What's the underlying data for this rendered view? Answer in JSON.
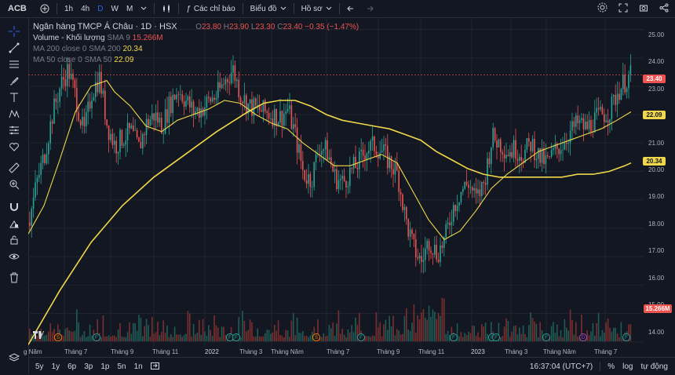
{
  "topbar": {
    "symbol": "ACB",
    "intervals": [
      "1h",
      "4h",
      "D",
      "W",
      "M"
    ],
    "active_interval": "D",
    "indicators_label": "Các chỉ báo",
    "chart_type_label": "Biểu đồ",
    "profile_label": "Hồ sơ"
  },
  "legend": {
    "title": "Ngân hàng TMCP Á Châu · 1D · HSX",
    "open_label": "O",
    "open": "23.80",
    "high_label": "H",
    "high": "23.90",
    "low_label": "L",
    "low": "23.30",
    "close_label": "C",
    "close": "23.40",
    "change": "−0.35 (−1.47%)",
    "volume_label": "Volume - Khối lượng",
    "volume_sma_label": "SMA 9",
    "volume_value": "15.266M",
    "ma200_label": "MA 200 close 0 SMA 200",
    "ma200_value": "20.34",
    "ma50_label": "MA 50 close 0 SMA 50",
    "ma50_value": "22.09"
  },
  "colors": {
    "up": "#26a69a",
    "down": "#ef5350",
    "ma": "#f0d84a",
    "background": "#131722",
    "grid": "#1f2430"
  },
  "price_axis": {
    "labels": [
      "25.00",
      "24.00",
      "23.00",
      "22.00",
      "21.00",
      "20.00",
      "19.00",
      "18.00",
      "17.00",
      "16.00",
      "15.00",
      "14.00"
    ],
    "last_price": "23.40",
    "ma50_tag": "22.09",
    "ma200_tag": "20.34",
    "volume_tag": "15.266M"
  },
  "time_axis": {
    "labels": [
      "g Năm",
      "Tháng 7",
      "Tháng 9",
      "Tháng 11",
      "2022",
      "Tháng 3",
      "Tháng Năm",
      "Tháng 7",
      "Tháng 9",
      "Tháng 11",
      "2023",
      "Tháng 3",
      "Tháng Năm",
      "Tháng 7"
    ]
  },
  "events": [
    "S",
    "F",
    "F",
    "F",
    "S",
    "F",
    "F",
    "F",
    "F",
    "F",
    "D",
    "F"
  ],
  "bottombar": {
    "ranges": [
      "5y",
      "1y",
      "6p",
      "3p",
      "1p",
      "5n",
      "1n"
    ],
    "time": "16:37:04 (UTC+7)",
    "percent_label": "%",
    "log_label": "log",
    "auto_label": "tự động"
  },
  "chart_data": {
    "type": "line",
    "ylim": [
      13.8,
      25.4
    ],
    "close_path": [
      [
        0,
        18.2
      ],
      [
        10,
        19.6
      ],
      [
        20,
        20.6
      ],
      [
        30,
        22.0
      ],
      [
        40,
        23.0
      ],
      [
        50,
        23.6
      ],
      [
        60,
        22.6
      ],
      [
        70,
        21.3
      ],
      [
        80,
        22.8
      ],
      [
        90,
        23.3
      ],
      [
        100,
        21.6
      ],
      [
        110,
        20.9
      ],
      [
        120,
        21.2
      ],
      [
        130,
        21.4
      ],
      [
        140,
        20.8
      ],
      [
        150,
        21.7
      ],
      [
        160,
        22.0
      ],
      [
        170,
        21.6
      ],
      [
        180,
        22.4
      ],
      [
        190,
        22.9
      ],
      [
        200,
        22.5
      ],
      [
        210,
        22.1
      ],
      [
        220,
        22.2
      ],
      [
        230,
        22.5
      ],
      [
        240,
        22.7
      ],
      [
        250,
        23.2
      ],
      [
        260,
        23.6
      ],
      [
        270,
        22.7
      ],
      [
        280,
        22.3
      ],
      [
        290,
        22.2
      ],
      [
        300,
        22.1
      ],
      [
        310,
        22.0
      ],
      [
        320,
        21.9
      ],
      [
        330,
        22.2
      ],
      [
        340,
        21.2
      ],
      [
        350,
        19.9
      ],
      [
        360,
        19.7
      ],
      [
        370,
        20.9
      ],
      [
        380,
        20.7
      ],
      [
        390,
        19.8
      ],
      [
        400,
        19.6
      ],
      [
        410,
        20.0
      ],
      [
        420,
        20.3
      ],
      [
        430,
        20.8
      ],
      [
        440,
        20.9
      ],
      [
        450,
        20.7
      ],
      [
        460,
        20.3
      ],
      [
        470,
        19.9
      ],
      [
        480,
        18.3
      ],
      [
        490,
        17.3
      ],
      [
        500,
        16.8
      ],
      [
        510,
        17.6
      ],
      [
        520,
        17.1
      ],
      [
        530,
        17.6
      ],
      [
        540,
        18.7
      ],
      [
        550,
        19.3
      ],
      [
        560,
        19.6
      ],
      [
        570,
        19.0
      ],
      [
        580,
        19.6
      ],
      [
        590,
        21.2
      ],
      [
        600,
        21.0
      ],
      [
        610,
        20.7
      ],
      [
        620,
        20.8
      ],
      [
        630,
        20.6
      ],
      [
        640,
        21.0
      ],
      [
        650,
        20.5
      ],
      [
        660,
        20.3
      ],
      [
        670,
        20.7
      ],
      [
        680,
        21.0
      ],
      [
        690,
        21.4
      ],
      [
        700,
        21.7
      ],
      [
        710,
        21.5
      ],
      [
        720,
        21.8
      ],
      [
        730,
        22.0
      ],
      [
        740,
        22.1
      ],
      [
        750,
        22.8
      ],
      [
        760,
        23.2
      ],
      [
        768,
        23.4
      ]
    ],
    "ma50": [
      [
        0,
        17.8
      ],
      [
        20,
        18.8
      ],
      [
        40,
        20.4
      ],
      [
        60,
        22.1
      ],
      [
        80,
        23.0
      ],
      [
        100,
        23.2
      ],
      [
        110,
        22.8
      ],
      [
        130,
        22.3
      ],
      [
        150,
        21.6
      ],
      [
        170,
        21.4
      ],
      [
        190,
        21.8
      ],
      [
        210,
        22.0
      ],
      [
        230,
        22.2
      ],
      [
        250,
        22.5
      ],
      [
        270,
        22.4
      ],
      [
        290,
        22.0
      ],
      [
        310,
        21.7
      ],
      [
        330,
        21.5
      ],
      [
        350,
        21.0
      ],
      [
        370,
        20.6
      ],
      [
        390,
        20.2
      ],
      [
        410,
        20.2
      ],
      [
        430,
        20.4
      ],
      [
        450,
        20.6
      ],
      [
        470,
        20.3
      ],
      [
        490,
        19.3
      ],
      [
        510,
        18.3
      ],
      [
        530,
        17.6
      ],
      [
        550,
        17.9
      ],
      [
        570,
        18.6
      ],
      [
        590,
        19.4
      ],
      [
        610,
        19.9
      ],
      [
        630,
        20.3
      ],
      [
        650,
        20.7
      ],
      [
        670,
        20.9
      ],
      [
        690,
        21.1
      ],
      [
        710,
        21.3
      ],
      [
        730,
        21.5
      ],
      [
        750,
        21.8
      ],
      [
        768,
        22.1
      ]
    ],
    "ma200": [
      [
        0,
        13.9
      ],
      [
        40,
        15.8
      ],
      [
        80,
        17.5
      ],
      [
        120,
        18.8
      ],
      [
        160,
        19.8
      ],
      [
        200,
        20.6
      ],
      [
        240,
        21.4
      ],
      [
        280,
        22.1
      ],
      [
        300,
        22.4
      ],
      [
        320,
        22.5
      ],
      [
        340,
        22.5
      ],
      [
        360,
        22.3
      ],
      [
        380,
        22.0
      ],
      [
        400,
        21.8
      ],
      [
        420,
        21.7
      ],
      [
        440,
        21.6
      ],
      [
        460,
        21.5
      ],
      [
        480,
        21.3
      ],
      [
        500,
        21.1
      ],
      [
        520,
        20.7
      ],
      [
        540,
        20.4
      ],
      [
        560,
        20.1
      ],
      [
        580,
        19.9
      ],
      [
        600,
        19.8
      ],
      [
        620,
        19.8
      ],
      [
        640,
        19.8
      ],
      [
        660,
        19.8
      ],
      [
        680,
        19.8
      ],
      [
        700,
        19.9
      ],
      [
        720,
        19.9
      ],
      [
        740,
        20.0
      ],
      [
        760,
        20.2
      ],
      [
        768,
        20.3
      ]
    ]
  }
}
